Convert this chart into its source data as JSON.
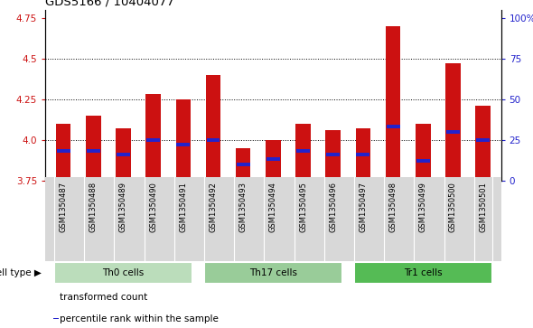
{
  "title": "GDS5166 / 10404077",
  "samples": [
    "GSM1350487",
    "GSM1350488",
    "GSM1350489",
    "GSM1350490",
    "GSM1350491",
    "GSM1350492",
    "GSM1350493",
    "GSM1350494",
    "GSM1350495",
    "GSM1350496",
    "GSM1350497",
    "GSM1350498",
    "GSM1350499",
    "GSM1350500",
    "GSM1350501"
  ],
  "bar_values": [
    4.1,
    4.15,
    4.07,
    4.28,
    4.25,
    4.4,
    3.95,
    4.0,
    4.1,
    4.06,
    4.07,
    4.7,
    4.1,
    4.47,
    4.21
  ],
  "percentile_values": [
    3.93,
    3.93,
    3.91,
    4.0,
    3.97,
    4.0,
    3.85,
    3.88,
    3.93,
    3.91,
    3.91,
    4.08,
    3.87,
    4.05,
    4.0
  ],
  "bar_bottom": 3.75,
  "ylim_min": 3.75,
  "ylim_max": 4.8,
  "yticks_left": [
    3.75,
    4.0,
    4.25,
    4.5,
    4.75
  ],
  "yticks_right_labels": [
    "0",
    "25",
    "50",
    "75",
    "100%"
  ],
  "yticks_right_values": [
    3.75,
    4.0,
    4.25,
    4.5,
    4.75
  ],
  "grid_values": [
    4.0,
    4.25,
    4.5
  ],
  "bar_color": "#cc1111",
  "percentile_color": "#2222cc",
  "cell_groups": [
    {
      "label": "Th0 cells",
      "start": 0,
      "end": 4,
      "color": "#bbddbb"
    },
    {
      "label": "Th17 cells",
      "start": 5,
      "end": 9,
      "color": "#99cc99"
    },
    {
      "label": "Tr1 cells",
      "start": 10,
      "end": 14,
      "color": "#55bb55"
    }
  ],
  "legend_items": [
    {
      "label": "transformed count",
      "color": "#cc1111"
    },
    {
      "label": "percentile rank within the sample",
      "color": "#2222cc"
    }
  ],
  "bar_width": 0.5,
  "figsize": [
    5.9,
    3.63
  ],
  "dpi": 100,
  "bg_gray": "#d8d8d8",
  "plot_bg": "#ffffff"
}
